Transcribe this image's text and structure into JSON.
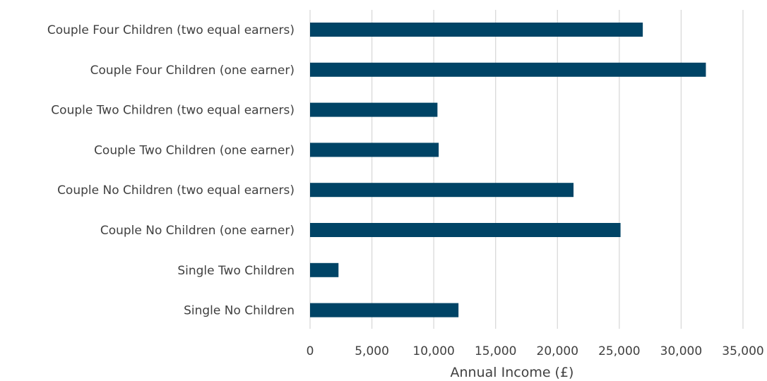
{
  "chart_data": {
    "type": "bar",
    "orientation": "horizontal",
    "categories": [
      "Couple Four Children (two equal earners)",
      "Couple Four Children (one earner)",
      "Couple Two Children (two equal earners)",
      "Couple Two Children (one earner)",
      "Couple No Children (two equal earners)",
      "Couple No Children (one earner)",
      "Single Two Children",
      "Single No Children"
    ],
    "values": [
      26900,
      32000,
      10300,
      10400,
      21300,
      25100,
      2300,
      12000
    ],
    "title": "",
    "xlabel": "Annual Income (£)",
    "ylabel": "",
    "xlim": [
      0,
      35000
    ],
    "xticks": [
      0,
      5000,
      10000,
      15000,
      20000,
      25000,
      30000,
      35000
    ],
    "xtick_labels": [
      "0",
      "5,000",
      "10,000",
      "15,000",
      "20,000",
      "25,000",
      "30,000",
      "35,000"
    ],
    "grid": true,
    "legend": "none",
    "colors": {
      "bar": "#004466",
      "grid": "#d9d9d9",
      "text": "#404040"
    }
  }
}
